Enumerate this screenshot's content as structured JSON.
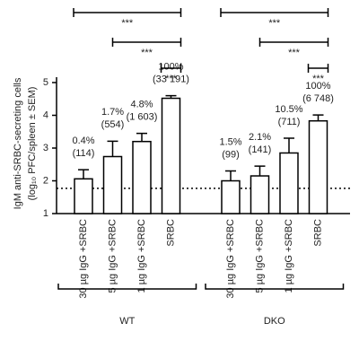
{
  "chart_data": {
    "type": "bar",
    "y_label": [
      "IgM anti-SRBC-secreting cells",
      "(log₁₀ PFC/spleen ± SEM)"
    ],
    "categories": [
      "30 µg IgG +SRBC",
      "5 µg IgG +SRBC",
      "1 µg IgG +SRBC",
      "SRBC"
    ],
    "groups": [
      {
        "name": "WT",
        "values": [
          2.06,
          2.74,
          3.2,
          4.52
        ],
        "errors": [
          0.28,
          0.47,
          0.25,
          0.08
        ],
        "annotations": [
          [
            "0.4%",
            "(114)"
          ],
          [
            "1.7%",
            "(554)"
          ],
          [
            "4.8%",
            "(1 603)"
          ],
          [
            "100%",
            "(33 191)"
          ]
        ]
      },
      {
        "name": "DKO",
        "values": [
          2.0,
          2.15,
          2.85,
          3.83
        ],
        "errors": [
          0.3,
          0.3,
          0.45,
          0.18
        ],
        "annotations": [
          [
            "1.5%",
            "(99)"
          ],
          [
            "2.1%",
            "(141)"
          ],
          [
            "10.5%",
            "(711)"
          ],
          [
            "100%",
            "(6 748)"
          ]
        ]
      }
    ],
    "significance": [
      {
        "from": 0,
        "to": 3,
        "label": "***"
      },
      {
        "from": 1,
        "to": 3,
        "label": "***"
      },
      {
        "from": 2,
        "to": 3,
        "label": "***"
      }
    ],
    "reference_line": 1.77,
    "ylim": [
      1,
      5
    ],
    "yticks": [
      1,
      2,
      3,
      4,
      5
    ],
    "color": "#ffffff"
  }
}
